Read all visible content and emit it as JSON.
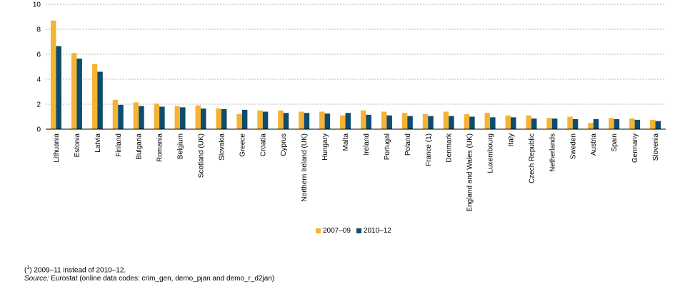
{
  "chart_data": {
    "type": "bar",
    "categories": [
      "Lithuania",
      "Estonia",
      "Latvia",
      "Finland",
      "Bulgaria",
      "Romania",
      "Belgium",
      "Scotland (UK)",
      "Slovakia",
      "Greece",
      "Croatia",
      "Cyprus",
      "Northern Ireland (UK)",
      "Hungary",
      "Malta",
      "Ireland",
      "Portugal",
      "Poland",
      "France (1)",
      "Denmark",
      "England and Wales (UK)",
      "Luxembourg",
      "Italy",
      "Czech Republic",
      "Netherlands",
      "Sweden",
      "Austria",
      "Spain",
      "Germany",
      "Slovenia"
    ],
    "series": [
      {
        "name": "2007–09",
        "color": "#f5b335",
        "values": [
          8.7,
          6.1,
          5.2,
          2.35,
          2.15,
          2.05,
          1.85,
          1.9,
          1.65,
          1.2,
          1.5,
          1.5,
          1.4,
          1.4,
          1.1,
          1.5,
          1.4,
          1.3,
          1.2,
          1.4,
          1.2,
          1.3,
          1.1,
          1.1,
          0.9,
          1.0,
          0.5,
          0.9,
          0.85,
          0.75
        ]
      },
      {
        "name": "2010–12",
        "color": "#0e4c6e",
        "values": [
          6.65,
          5.65,
          4.6,
          1.95,
          1.85,
          1.8,
          1.75,
          1.65,
          1.6,
          1.55,
          1.4,
          1.3,
          1.3,
          1.25,
          1.3,
          1.15,
          1.1,
          1.05,
          1.05,
          1.05,
          1.0,
          0.95,
          0.95,
          0.85,
          0.85,
          0.8,
          0.8,
          0.8,
          0.75,
          0.65
        ]
      }
    ],
    "y_ticks": [
      0,
      2,
      4,
      6,
      8,
      10
    ],
    "ylim": [
      0,
      10
    ],
    "grid": true,
    "legend_position": "bottom-center"
  },
  "footnotes": {
    "note_marker": "1",
    "note_text": " 2009–11 instead of 2010–12.",
    "source_label": "Source:",
    "source_text": " Eurostat (online data codes: crim_gen, demo_pjan and demo_r_d2jan)"
  }
}
